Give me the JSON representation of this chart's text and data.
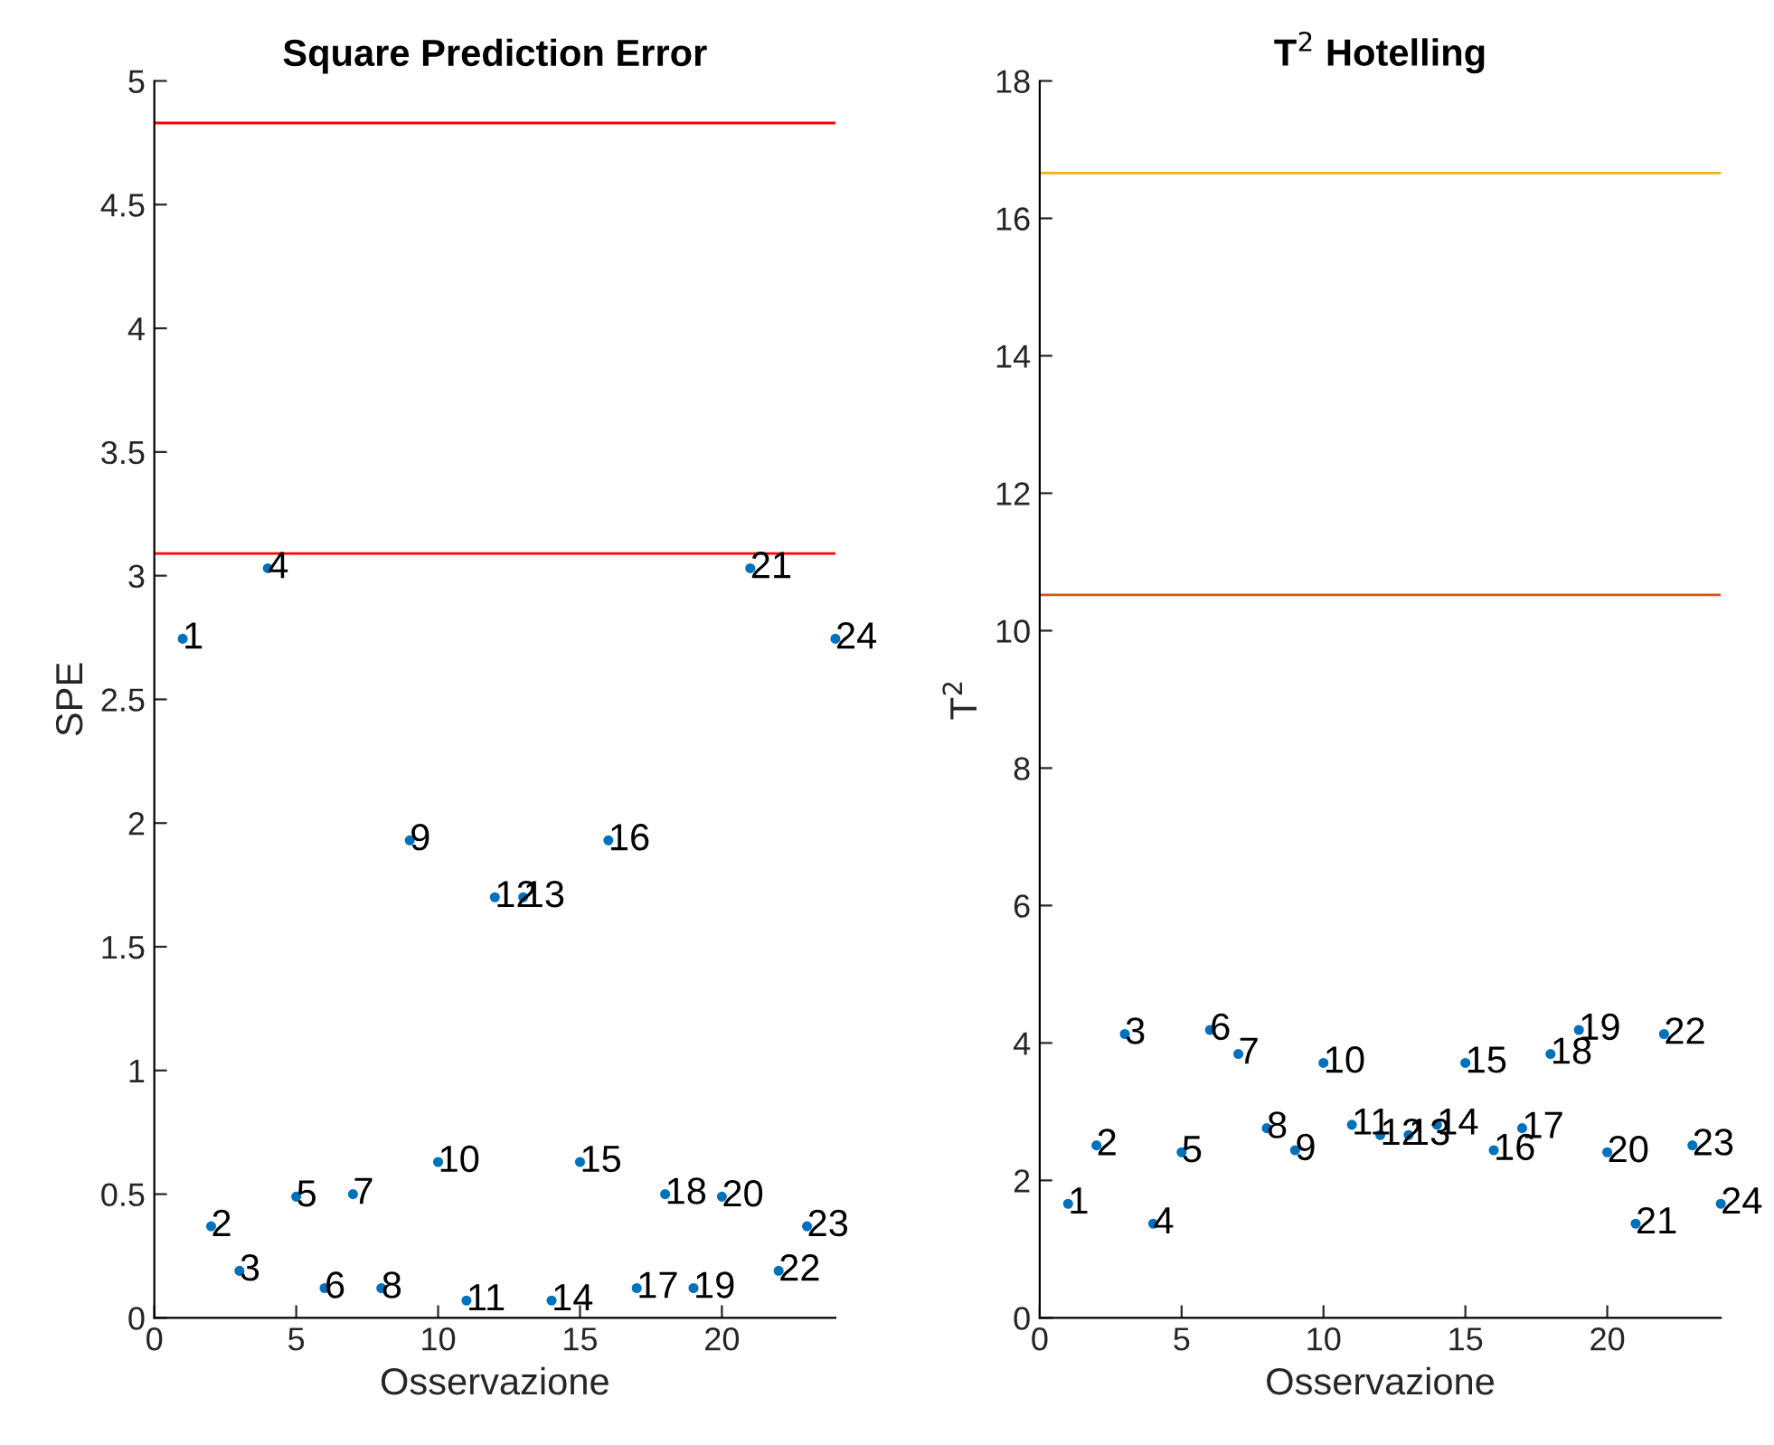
{
  "chart_data": [
    {
      "type": "scatter",
      "title": "Square Prediction Error",
      "xlabel": "Osservazione",
      "ylabel": "SPE",
      "marker": "circle",
      "grid": false,
      "x": [
        1,
        2,
        3,
        4,
        5,
        6,
        7,
        8,
        9,
        10,
        11,
        12,
        13,
        14,
        15,
        16,
        17,
        18,
        19,
        20,
        21,
        22,
        23,
        24
      ],
      "series": [
        {
          "color": "#0072bd",
          "values": [
            2.745,
            0.37,
            0.19,
            3.03,
            0.49,
            0.12,
            0.5,
            0.12,
            1.93,
            0.63,
            0.07,
            1.7,
            1.7,
            0.07,
            0.63,
            1.93,
            0.12,
            0.5,
            0.12,
            0.49,
            3.03,
            0.19,
            0.37,
            2.745
          ]
        }
      ],
      "xlim": [
        0,
        24
      ],
      "xticks": [
        0,
        5,
        10,
        15,
        20
      ],
      "ylim": [
        0,
        5
      ],
      "yticks": [
        0,
        0.5,
        1,
        1.5,
        2,
        2.5,
        3,
        3.5,
        4,
        4.5,
        5
      ],
      "ref_lines": [
        {
          "axis": "y",
          "value": 4.83,
          "color": "#ff0000"
        },
        {
          "axis": "y",
          "value": 3.09,
          "color": "#ff0000"
        }
      ],
      "annotations": [
        {
          "text": "1",
          "x": 1,
          "y": 2.745
        },
        {
          "text": "2",
          "x": 2,
          "y": 0.37
        },
        {
          "text": "3",
          "x": 3,
          "y": 0.19
        },
        {
          "text": "4",
          "x": 4,
          "y": 3.03
        },
        {
          "text": "5",
          "x": 5,
          "y": 0.49
        },
        {
          "text": "6",
          "x": 6,
          "y": 0.12
        },
        {
          "text": "7",
          "x": 7,
          "y": 0.5
        },
        {
          "text": "8",
          "x": 8,
          "y": 0.12
        },
        {
          "text": "9",
          "x": 9,
          "y": 1.93
        },
        {
          "text": "10",
          "x": 10,
          "y": 0.63
        },
        {
          "text": "11",
          "x": 11,
          "y": 0.07
        },
        {
          "text": "12",
          "x": 12,
          "y": 1.7
        },
        {
          "text": "13",
          "x": 13,
          "y": 1.7
        },
        {
          "text": "14",
          "x": 14,
          "y": 0.07
        },
        {
          "text": "15",
          "x": 15,
          "y": 0.63
        },
        {
          "text": "16",
          "x": 16,
          "y": 1.93
        },
        {
          "text": "17",
          "x": 17,
          "y": 0.12
        },
        {
          "text": "18",
          "x": 18,
          "y": 0.5
        },
        {
          "text": "19",
          "x": 19,
          "y": 0.12
        },
        {
          "text": "20",
          "x": 20,
          "y": 0.49
        },
        {
          "text": "21",
          "x": 21,
          "y": 3.03
        },
        {
          "text": "22",
          "x": 22,
          "y": 0.19
        },
        {
          "text": "23",
          "x": 23,
          "y": 0.37
        },
        {
          "text": "24",
          "x": 24,
          "y": 2.745
        }
      ]
    },
    {
      "type": "scatter",
      "title": "T$^{2}$ Hotelling",
      "xlabel": "Osservazione",
      "ylabel": "T$^{2}$",
      "marker": "circle",
      "grid": false,
      "x": [
        1,
        2,
        3,
        4,
        5,
        6,
        7,
        8,
        9,
        10,
        11,
        12,
        13,
        14,
        15,
        16,
        17,
        18,
        19,
        20,
        21,
        22,
        23,
        24
      ],
      "series": [
        {
          "color": "#0072bd",
          "values": [
            1.66,
            2.51,
            4.13,
            1.37,
            2.41,
            4.19,
            3.84,
            2.76,
            2.44,
            3.71,
            2.81,
            2.66,
            2.66,
            2.81,
            3.71,
            2.44,
            2.76,
            3.84,
            4.19,
            2.41,
            1.37,
            4.13,
            2.51,
            1.66
          ]
        }
      ],
      "xlim": [
        0,
        24
      ],
      "xticks": [
        0,
        5,
        10,
        15,
        20
      ],
      "ylim": [
        0,
        18
      ],
      "yticks": [
        0,
        2,
        4,
        6,
        8,
        10,
        12,
        14,
        16,
        18
      ],
      "ref_lines": [
        {
          "axis": "y",
          "value": 16.66,
          "color": "#edb120"
        },
        {
          "axis": "y",
          "value": 10.52,
          "color": "#d95319"
        }
      ],
      "annotations": [
        {
          "text": "1",
          "x": 1,
          "y": 1.66
        },
        {
          "text": "2",
          "x": 2,
          "y": 2.51
        },
        {
          "text": "3",
          "x": 3,
          "y": 4.13
        },
        {
          "text": "4",
          "x": 4,
          "y": 1.37
        },
        {
          "text": "5",
          "x": 5,
          "y": 2.41
        },
        {
          "text": "6",
          "x": 6,
          "y": 4.19
        },
        {
          "text": "7",
          "x": 7,
          "y": 3.84
        },
        {
          "text": "8",
          "x": 8,
          "y": 2.76
        },
        {
          "text": "9",
          "x": 9,
          "y": 2.44
        },
        {
          "text": "10",
          "x": 10,
          "y": 3.71
        },
        {
          "text": "11",
          "x": 11,
          "y": 2.81
        },
        {
          "text": "12",
          "x": 12,
          "y": 2.66
        },
        {
          "text": "13",
          "x": 13,
          "y": 2.66
        },
        {
          "text": "14",
          "x": 14,
          "y": 2.81
        },
        {
          "text": "15",
          "x": 15,
          "y": 3.71
        },
        {
          "text": "16",
          "x": 16,
          "y": 2.44
        },
        {
          "text": "17",
          "x": 17,
          "y": 2.76
        },
        {
          "text": "18",
          "x": 18,
          "y": 3.84
        },
        {
          "text": "19",
          "x": 19,
          "y": 4.19
        },
        {
          "text": "20",
          "x": 20,
          "y": 2.41
        },
        {
          "text": "21",
          "x": 21,
          "y": 1.37
        },
        {
          "text": "22",
          "x": 22,
          "y": 4.13
        },
        {
          "text": "23",
          "x": 23,
          "y": 2.51
        },
        {
          "text": "24",
          "x": 24,
          "y": 1.66
        }
      ]
    }
  ]
}
